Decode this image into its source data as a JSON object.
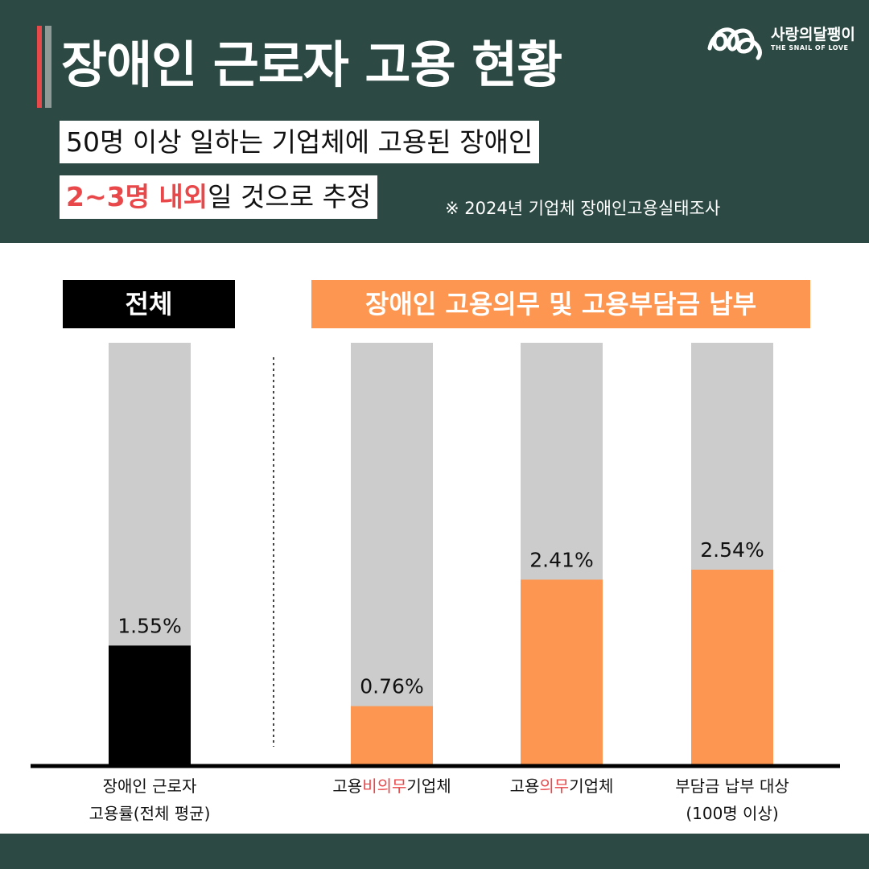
{
  "header": {
    "title": "장애인 근로자 고용 현황",
    "logo_name": "사랑의달팽이",
    "logo_tagline": "THE SNAIL OF LOVE",
    "subtitle_line1": "50명 이상 일하는 기업체에 고용된 장애인",
    "subtitle_line2_highlight": "2~3명 내외",
    "subtitle_line2_rest": "일 것으로 추정",
    "source": "※ 2024년 기업체 장애인고용실태조사"
  },
  "colors": {
    "header_bg": "#2c4a43",
    "accent_red": "#e8484a",
    "orange": "#fd9650",
    "black_bar": "#000000",
    "track_gray": "#cccccc"
  },
  "groups": {
    "total_label": "전체",
    "obligated_label": "장애인 고용의무 및 고용부담금 납부"
  },
  "categories": {
    "c0_line1": "장애인 근로자",
    "c0_line2": "고용률(전체 평균)",
    "c1_pre": "고용",
    "c1_red": "비의무",
    "c1_post": "기업체",
    "c2_pre": "고용",
    "c2_red": "의무",
    "c2_post": "기업체",
    "c3_line1": "부담금 납부 대상",
    "c3_line2": "(100명 이상)"
  },
  "chart_data": {
    "type": "bar",
    "categories": [
      "장애인 근로자 고용률(전체 평균)",
      "고용비의무기업체",
      "고용의무기업체",
      "부담금 납부 대상 (100명 이상)"
    ],
    "values": [
      1.55,
      0.76,
      2.41,
      2.54
    ],
    "value_labels": [
      "1.55%",
      "0.76%",
      "2.41%",
      "2.54%"
    ],
    "bar_colors": [
      "#000000",
      "#fd9650",
      "#fd9650",
      "#fd9650"
    ],
    "ylim": [
      0,
      5.5
    ],
    "grid": false,
    "legend": "none"
  }
}
